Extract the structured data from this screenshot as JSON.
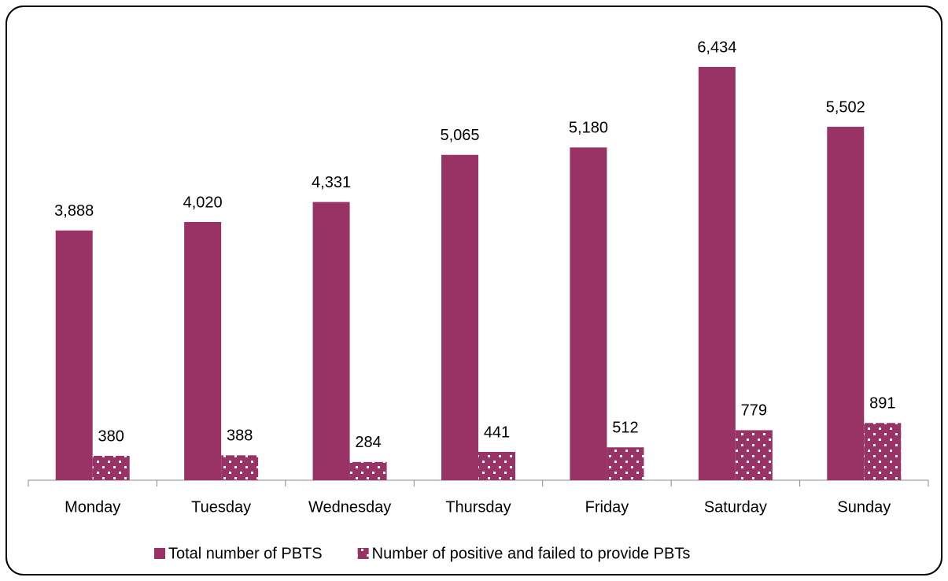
{
  "chart_data": {
    "type": "bar",
    "categories": [
      "Monday",
      "Tuesday",
      "Wednesday",
      "Thursday",
      "Friday",
      "Saturday",
      "Sunday"
    ],
    "series": [
      {
        "name": "Total number of PBTS",
        "color": "#993366",
        "values": [
          3888,
          4020,
          4331,
          5065,
          5180,
          6434,
          5502
        ],
        "value_labels": [
          "3,888",
          "4,020",
          "4,331",
          "5,065",
          "5,180",
          "6,434",
          "5,502"
        ]
      },
      {
        "name": "Number of positive and failed to provide PBTs",
        "color": "#993366",
        "pattern": "dots",
        "values": [
          380,
          388,
          284,
          441,
          512,
          779,
          891
        ]
      }
    ],
    "legend": "bottom"
  }
}
